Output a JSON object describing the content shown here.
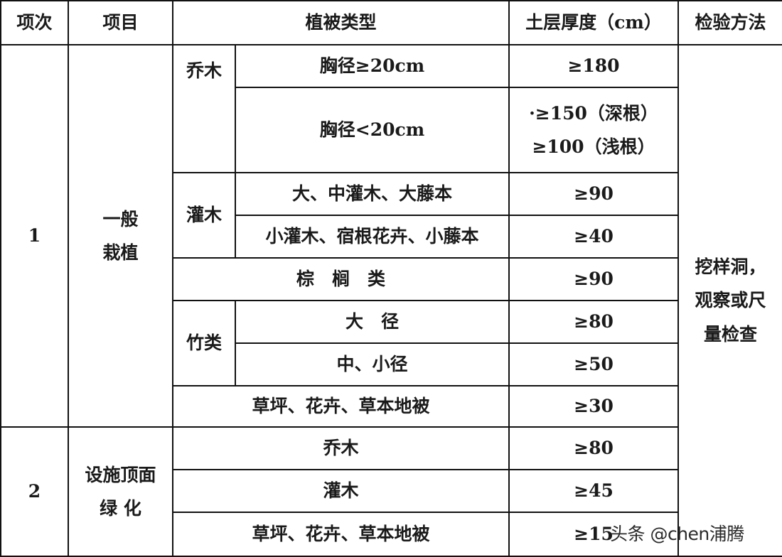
{
  "header": {
    "index": "项次",
    "item": "项目",
    "vegetation_type": "植被类型",
    "soil_thickness": "土层厚度（cm）",
    "inspection_method": "检验方法"
  },
  "groups": [
    {
      "index": "1",
      "item": "一般\n栽植",
      "rows": [
        {
          "category": "乔木",
          "type": "胸径≥20cm",
          "thickness": "≥180"
        },
        {
          "type": "胸径<20cm",
          "thickness": "·≥150（深根）\n≥100（浅根）"
        },
        {
          "category": "灌木",
          "type": "大、中灌木、大藤本",
          "thickness": "≥90"
        },
        {
          "type": "小灌木、宿根花卉、小藤本",
          "thickness": "≥40"
        },
        {
          "type": "棕　榈　类",
          "thickness": "≥90"
        },
        {
          "category": "竹类",
          "type": "大　径",
          "thickness": "≥80"
        },
        {
          "type": "中、小径",
          "thickness": "≥50"
        },
        {
          "type": "草坪、花卉、草本地被",
          "thickness": "≥30"
        }
      ]
    },
    {
      "index": "2",
      "item": "设施顶面\n绿 化",
      "rows": [
        {
          "type": "乔木",
          "thickness": "≥80"
        },
        {
          "type": "灌木",
          "thickness": "≥45"
        },
        {
          "type": "草坪、花卉、草本地被",
          "thickness": "≥15"
        }
      ]
    }
  ],
  "inspection_method": "挖样洞，\n观察或尺\n量检查",
  "watermark": "头条 @chen浦腾"
}
